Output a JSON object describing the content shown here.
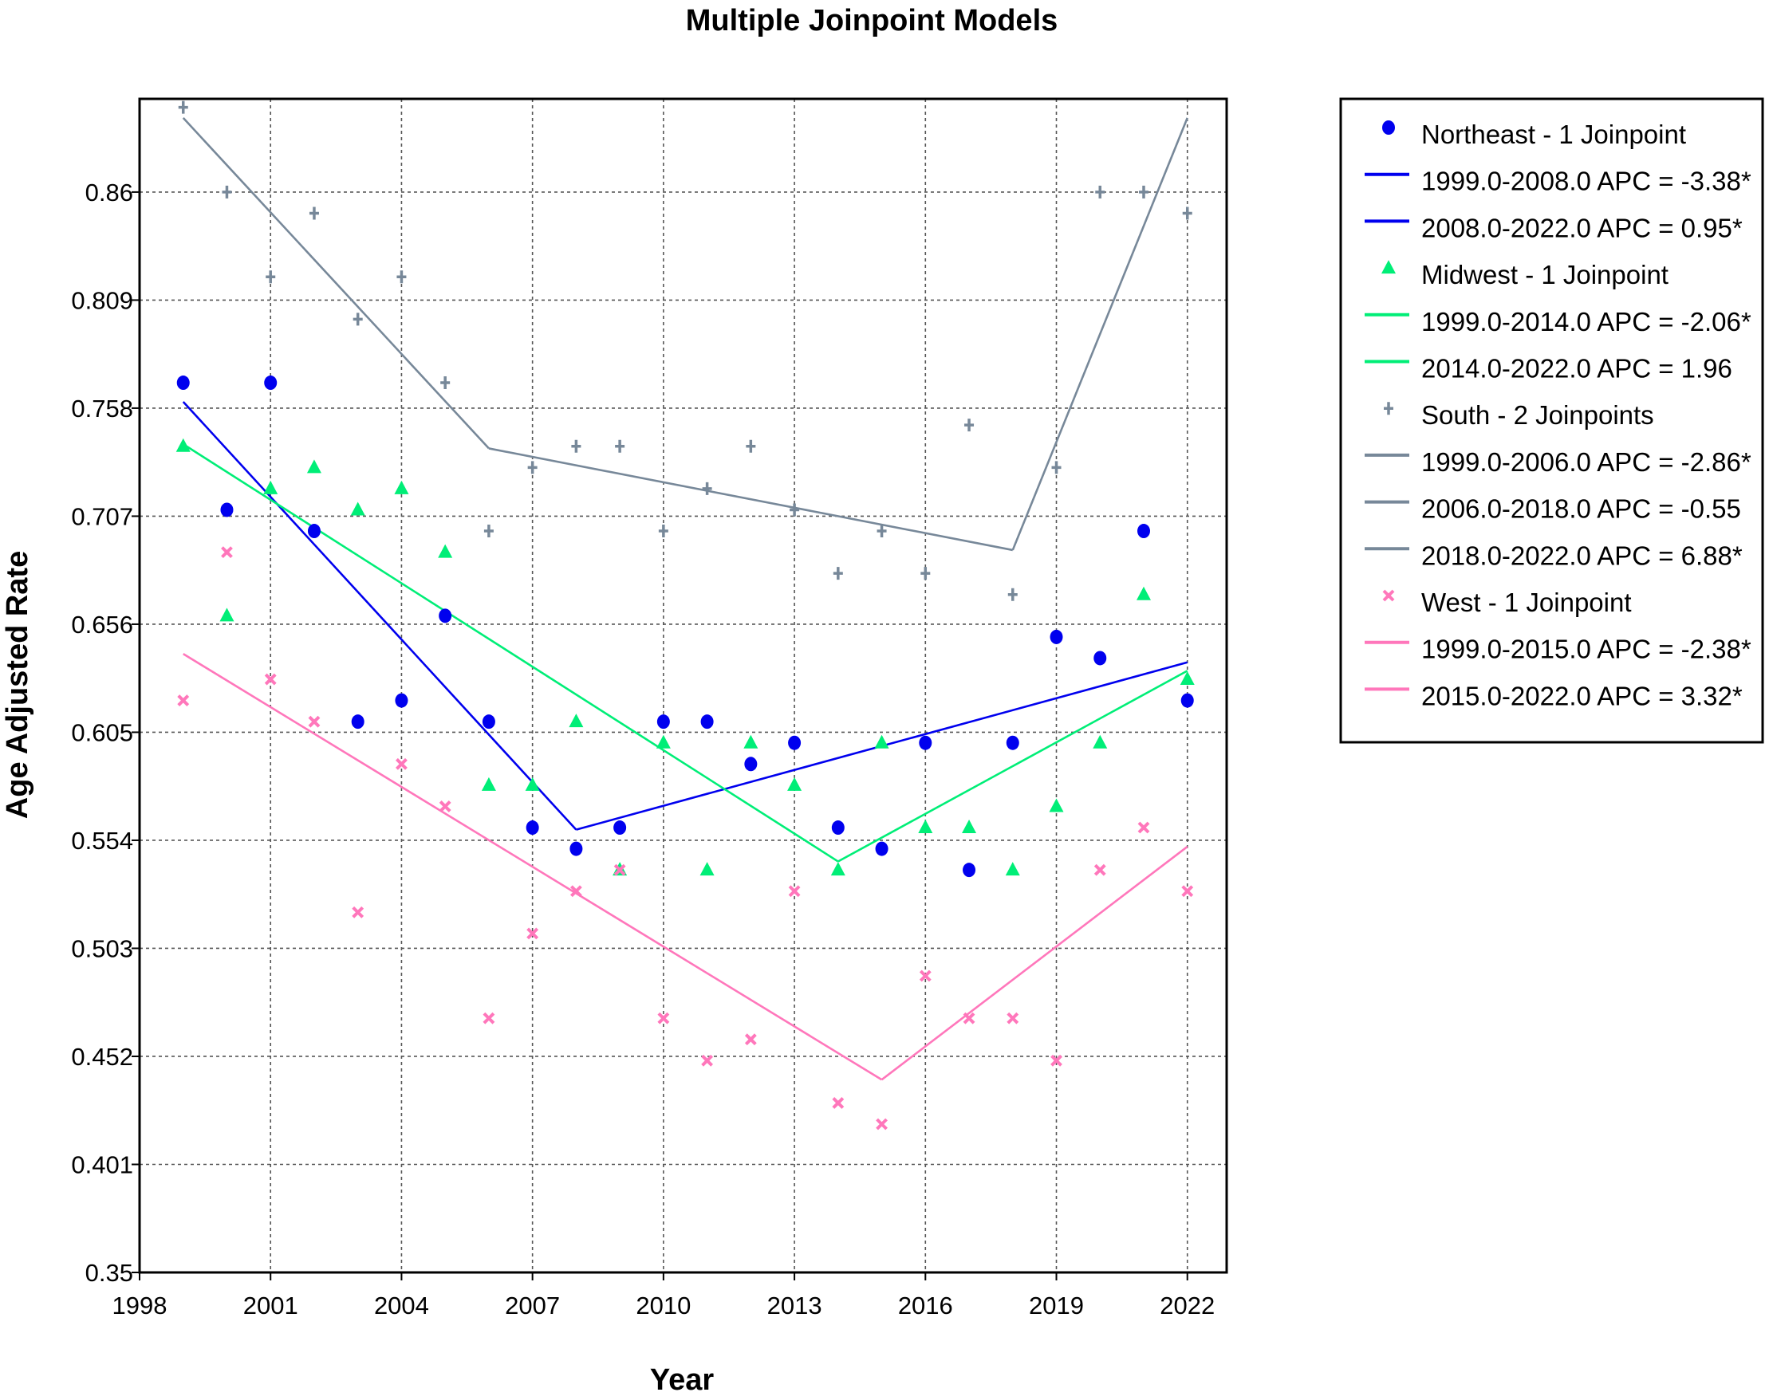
{
  "chart_data": {
    "type": "scatter",
    "title": "Multiple Joinpoint Models",
    "xlabel": "Year",
    "ylabel": "Age Adjusted Rate",
    "xlim": [
      1998,
      2022.9
    ],
    "ylim": [
      0.35,
      0.904
    ],
    "xticks": [
      1998,
      2001,
      2004,
      2007,
      2010,
      2013,
      2016,
      2019,
      2022
    ],
    "yticks": [
      0.35,
      0.401,
      0.452,
      0.503,
      0.554,
      0.605,
      0.656,
      0.707,
      0.758,
      0.809,
      0.86
    ],
    "ytick_labels": [
      "0.35",
      "0.401",
      "0.452",
      "0.503",
      "0.554",
      "0.605",
      "0.656",
      "0.707",
      "0.758",
      "0.809",
      "0.86"
    ],
    "grid": true,
    "legend_position": "right",
    "series": [
      {
        "name": "Northeast - 1 Joinpoint",
        "color": "#0000ee",
        "marker": "circle",
        "x": [
          1999,
          2000,
          2001,
          2002,
          2003,
          2004,
          2005,
          2006,
          2007,
          2008,
          2009,
          2010,
          2011,
          2012,
          2013,
          2014,
          2015,
          2016,
          2017,
          2018,
          2019,
          2020,
          2021,
          2022
        ],
        "y": [
          0.77,
          0.71,
          0.77,
          0.7,
          0.61,
          0.62,
          0.66,
          0.61,
          0.56,
          0.55,
          0.56,
          0.61,
          0.61,
          0.59,
          0.6,
          0.56,
          0.55,
          0.6,
          0.54,
          0.6,
          0.65,
          0.64,
          0.7,
          0.62
        ],
        "fit_segments": [
          {
            "label": "1999.0-2008.0 APC  =  -3.38*",
            "x": [
              1999,
              2008
            ],
            "y": [
              0.761,
              0.559
            ]
          },
          {
            "label": "2008.0-2022.0 APC  =  0.95*",
            "x": [
              2008,
              2022
            ],
            "y": [
              0.559,
              0.638
            ]
          }
        ]
      },
      {
        "name": "Midwest - 1 Joinpoint",
        "color": "#00ee77",
        "marker": "triangle",
        "x": [
          1999,
          2000,
          2001,
          2002,
          2003,
          2004,
          2005,
          2006,
          2007,
          2008,
          2009,
          2010,
          2011,
          2012,
          2013,
          2014,
          2015,
          2016,
          2017,
          2018,
          2019,
          2020,
          2021,
          2022
        ],
        "y": [
          0.74,
          0.66,
          0.72,
          0.73,
          0.71,
          0.72,
          0.69,
          0.58,
          0.58,
          0.61,
          0.54,
          0.6,
          0.54,
          0.6,
          0.58,
          0.54,
          0.6,
          0.56,
          0.56,
          0.54,
          0.57,
          0.6,
          0.67,
          0.63
        ],
        "fit_segments": [
          {
            "label": "1999.0-2014.0 APC  =  -2.06*",
            "x": [
              1999,
              2014
            ],
            "y": [
              0.741,
              0.544
            ]
          },
          {
            "label": "2014.0-2022.0 APC  =  1.96",
            "x": [
              2014,
              2022
            ],
            "y": [
              0.544,
              0.634
            ]
          }
        ]
      },
      {
        "name": "South - 2 Joinpoints",
        "color": "#778899",
        "marker": "plus",
        "x": [
          1999,
          2000,
          2001,
          2002,
          2003,
          2004,
          2005,
          2006,
          2007,
          2008,
          2009,
          2010,
          2011,
          2012,
          2013,
          2014,
          2015,
          2016,
          2017,
          2018,
          2019,
          2020,
          2021,
          2022
        ],
        "y": [
          0.9,
          0.86,
          0.82,
          0.85,
          0.8,
          0.82,
          0.77,
          0.7,
          0.73,
          0.74,
          0.74,
          0.7,
          0.72,
          0.74,
          0.71,
          0.68,
          0.7,
          0.68,
          0.75,
          0.67,
          0.73,
          0.86,
          0.86,
          0.85
        ],
        "fit_segments": [
          {
            "label": "1999.0-2006.0 APC  =  -2.86*",
            "x": [
              1999,
              2006
            ],
            "y": [
              0.895,
              0.739
            ]
          },
          {
            "label": "2006.0-2018.0 APC  =  -0.55",
            "x": [
              2006,
              2018
            ],
            "y": [
              0.739,
              0.691
            ]
          },
          {
            "label": "2018.0-2022.0 APC  =  6.88*",
            "x": [
              2018,
              2022
            ],
            "y": [
              0.691,
              0.895
            ]
          }
        ]
      },
      {
        "name": "West - 1 Joinpoint",
        "color": "#ff77bb",
        "marker": "x",
        "x": [
          1999,
          2000,
          2001,
          2002,
          2003,
          2004,
          2005,
          2006,
          2007,
          2008,
          2009,
          2010,
          2011,
          2012,
          2013,
          2014,
          2015,
          2016,
          2017,
          2018,
          2019,
          2020,
          2021,
          2022
        ],
        "y": [
          0.62,
          0.69,
          0.63,
          0.61,
          0.52,
          0.59,
          0.57,
          0.47,
          0.51,
          0.53,
          0.54,
          0.47,
          0.45,
          0.46,
          0.53,
          0.43,
          0.42,
          0.49,
          0.47,
          0.47,
          0.45,
          0.54,
          0.56,
          0.53
        ],
        "fit_segments": [
          {
            "label": "1999.0-2015.0 APC  =  -2.38*",
            "x": [
              1999,
              2015
            ],
            "y": [
              0.642,
              0.441
            ]
          },
          {
            "label": "2015.0-2022.0 APC  =  3.32*",
            "x": [
              2015,
              2022
            ],
            "y": [
              0.441,
              0.551
            ]
          }
        ]
      }
    ]
  }
}
